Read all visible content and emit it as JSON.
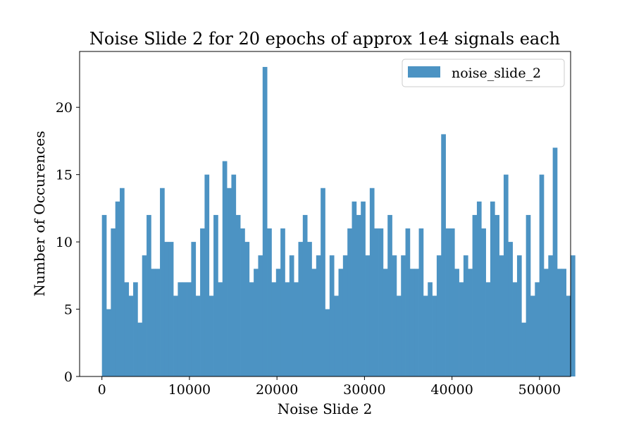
{
  "chart_data": {
    "type": "bar",
    "title": "Noise Slide 2 for 20 epochs of approx 1e4 signals each",
    "xlabel": "Noise Slide 2",
    "ylabel": "Number of Occurences",
    "xlim": [
      -2550,
      53550
    ],
    "ylim": [
      0,
      24.15
    ],
    "xticks": [
      "0",
      "10000",
      "20000",
      "30000",
      "40000",
      "50000"
    ],
    "yticks": [
      "0",
      "5",
      "10",
      "15",
      "20"
    ],
    "bin_start": 0,
    "bin_width": 510,
    "series": [
      {
        "name": "noise_slide_2",
        "color": "#4c93c3",
        "values": [
          12,
          5,
          11,
          13,
          14,
          7,
          6,
          7,
          4,
          9,
          12,
          8,
          8,
          14,
          10,
          10,
          6,
          7,
          7,
          7,
          10,
          6,
          11,
          15,
          6,
          12,
          7,
          16,
          14,
          15,
          12,
          11,
          10,
          7,
          8,
          9,
          23,
          11,
          7,
          8,
          11,
          7,
          9,
          7,
          10,
          12,
          10,
          8,
          9,
          14,
          5,
          9,
          6,
          8,
          9,
          11,
          13,
          12,
          13,
          9,
          14,
          11,
          11,
          8,
          12,
          9,
          6,
          9,
          11,
          8,
          8,
          11,
          6,
          7,
          6,
          9,
          18,
          11,
          11,
          8,
          7,
          9,
          8,
          12,
          13,
          11,
          7,
          13,
          12,
          9,
          15,
          10,
          7,
          9,
          4,
          12,
          6,
          7,
          15,
          8,
          9,
          17,
          8,
          8,
          6,
          9
        ]
      }
    ],
    "legend_position": "upper-right",
    "grid": false
  }
}
